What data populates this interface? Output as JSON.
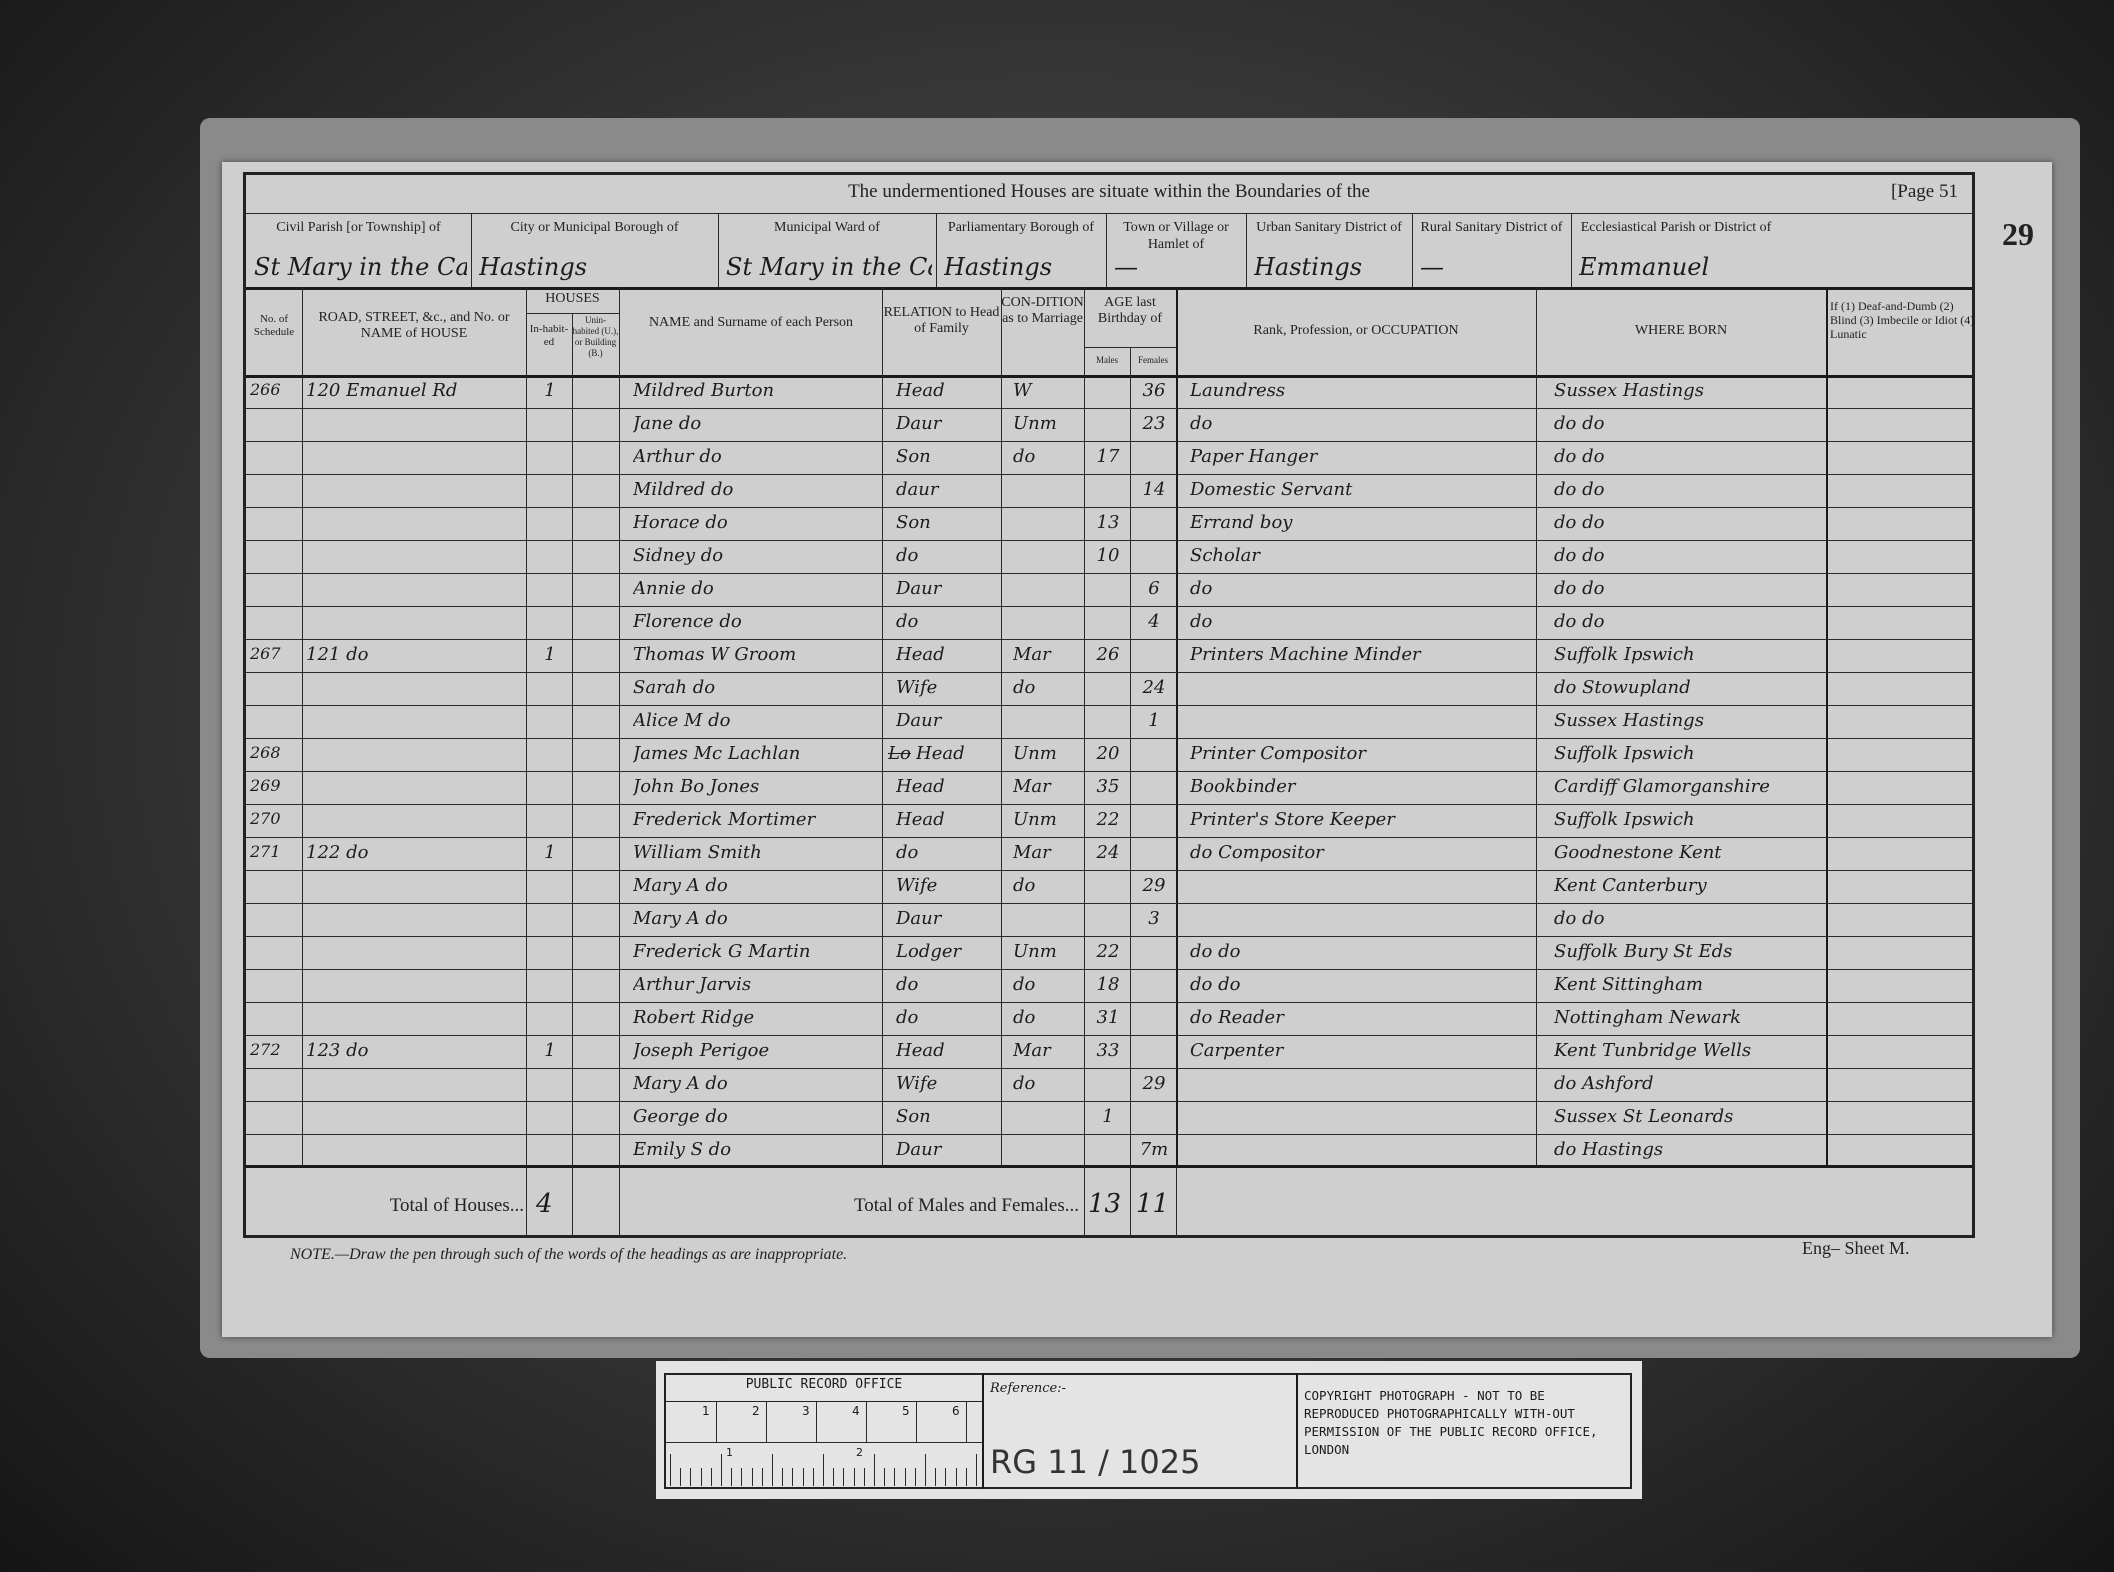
{
  "header": {
    "title": "The undermentioned Houses are situate within the Boundaries of the",
    "page": "[Page 51",
    "folio": "29"
  },
  "boundaries": [
    {
      "label": "Civil Parish [or Township] of",
      "value": "St Mary in the Castle"
    },
    {
      "label": "City or Municipal Borough of",
      "value": "Hastings"
    },
    {
      "label": "Municipal Ward of",
      "value": "St Mary in the Castle"
    },
    {
      "label": "Parliamentary Borough of",
      "value": "Hastings"
    },
    {
      "label": "Town or Village or Hamlet of",
      "value": "—"
    },
    {
      "label": "Urban Sanitary District of",
      "value": "Hastings"
    },
    {
      "label": "Rural Sanitary District of",
      "value": "—"
    },
    {
      "label": "Ecclesiastical Parish or District of",
      "value": "Emmanuel"
    }
  ],
  "columns": {
    "schedule": "No. of Schedule",
    "road": "ROAD, STREET, &c., and No. or NAME of HOUSE",
    "houses": "HOUSES",
    "inhabited": "In-habit-ed",
    "uninhabited": "Unin-habited (U.), or Building (B.)",
    "name": "NAME and Surname of each Person",
    "relation": "RELATION to Head of Family",
    "condition": "CON-DITION as to Marriage",
    "age": "AGE last Birthday of",
    "males": "Males",
    "females": "Females",
    "occupation": "Rank, Profession, or OCCUPATION",
    "born": "WHERE BORN",
    "infirmity": "If (1) Deaf-and-Dumb (2) Blind (3) Imbecile or Idiot (4) Lunatic"
  },
  "rows": [
    {
      "schedule": "266",
      "road": "120 Emanuel Rd",
      "inhabited": "1",
      "name": "Mildred Burton",
      "relation": "Head",
      "condition": "W",
      "male": "",
      "female": "36",
      "occupation": "Laundress",
      "born": "Sussex Hastings"
    },
    {
      "schedule": "",
      "road": "",
      "inhabited": "",
      "name": "Jane do",
      "relation": "Daur",
      "condition": "Unm",
      "male": "",
      "female": "23",
      "occupation": "do",
      "born": "do do"
    },
    {
      "schedule": "",
      "road": "",
      "inhabited": "",
      "name": "Arthur do",
      "relation": "Son",
      "condition": "do",
      "male": "17",
      "female": "",
      "occupation": "Paper Hanger",
      "born": "do do"
    },
    {
      "schedule": "",
      "road": "",
      "inhabited": "",
      "name": "Mildred do",
      "relation": "daur",
      "condition": "",
      "male": "",
      "female": "14",
      "occupation": "Domestic Servant",
      "born": "do do"
    },
    {
      "schedule": "",
      "road": "",
      "inhabited": "",
      "name": "Horace do",
      "relation": "Son",
      "condition": "",
      "male": "13",
      "female": "",
      "occupation": "Errand boy",
      "born": "do do"
    },
    {
      "schedule": "",
      "road": "",
      "inhabited": "",
      "name": "Sidney do",
      "relation": "do",
      "condition": "",
      "male": "10",
      "female": "",
      "occupation": "Scholar",
      "born": "do do"
    },
    {
      "schedule": "",
      "road": "",
      "inhabited": "",
      "name": "Annie do",
      "relation": "Daur",
      "condition": "",
      "male": "",
      "female": "6",
      "occupation": "do",
      "born": "do do"
    },
    {
      "schedule": "",
      "road": "",
      "inhabited": "",
      "name": "Florence do",
      "relation": "do",
      "condition": "",
      "male": "",
      "female": "4",
      "occupation": "do",
      "born": "do do"
    },
    {
      "schedule": "267",
      "road": "121 do",
      "inhabited": "1",
      "name": "Thomas W Groom",
      "relation": "Head",
      "condition": "Mar",
      "male": "26",
      "female": "",
      "occupation": "Printers Machine Minder",
      "born": "Suffolk Ipswich"
    },
    {
      "schedule": "",
      "road": "",
      "inhabited": "",
      "name": "Sarah do",
      "relation": "Wife",
      "condition": "do",
      "male": "",
      "female": "24",
      "occupation": "",
      "born": "do Stowupland"
    },
    {
      "schedule": "",
      "road": "",
      "inhabited": "",
      "name": "Alice M do",
      "relation": "Daur",
      "condition": "",
      "male": "",
      "female": "1",
      "occupation": "",
      "born": "Sussex Hastings"
    },
    {
      "schedule": "268",
      "road": "",
      "inhabited": "",
      "name": "James Mc Lachlan",
      "relation": "Head",
      "relation_struck": "Lo",
      "condition": "Unm",
      "male": "20",
      "female": "",
      "occupation": "Printer Compositor",
      "born": "Suffolk Ipswich"
    },
    {
      "schedule": "269",
      "road": "",
      "inhabited": "",
      "name": "John Bo Jones",
      "relation": "Head",
      "condition": "Mar",
      "male": "35",
      "female": "",
      "occupation": "Bookbinder",
      "born": "Cardiff Glamorganshire"
    },
    {
      "schedule": "270",
      "road": "",
      "inhabited": "",
      "name": "Frederick Mortimer",
      "relation": "Head",
      "condition": "Unm",
      "male": "22",
      "female": "",
      "occupation": "Printer's Store Keeper",
      "born": "Suffolk Ipswich"
    },
    {
      "schedule": "271",
      "road": "122 do",
      "inhabited": "1",
      "name": "William Smith",
      "relation": "do",
      "condition": "Mar",
      "male": "24",
      "female": "",
      "occupation": "do Compositor",
      "born": "Goodnestone Kent"
    },
    {
      "schedule": "",
      "road": "",
      "inhabited": "",
      "name": "Mary A do",
      "relation": "Wife",
      "condition": "do",
      "male": "",
      "female": "29",
      "occupation": "",
      "born": "Kent Canterbury"
    },
    {
      "schedule": "",
      "road": "",
      "inhabited": "",
      "name": "Mary A do",
      "relation": "Daur",
      "condition": "",
      "male": "",
      "female": "3",
      "occupation": "",
      "born": "do do"
    },
    {
      "schedule": "",
      "road": "",
      "inhabited": "",
      "name": "Frederick G Martin",
      "relation": "Lodger",
      "condition": "Unm",
      "male": "22",
      "female": "",
      "occupation": "do do",
      "born": "Suffolk Bury St Eds"
    },
    {
      "schedule": "",
      "road": "",
      "inhabited": "",
      "name": "Arthur Jarvis",
      "relation": "do",
      "condition": "do",
      "male": "18",
      "female": "",
      "occupation": "do do",
      "born": "Kent Sittingham"
    },
    {
      "schedule": "",
      "road": "",
      "inhabited": "",
      "name": "Robert Ridge",
      "relation": "do",
      "condition": "do",
      "male": "31",
      "female": "",
      "occupation": "do Reader",
      "born": "Nottingham Newark"
    },
    {
      "schedule": "272",
      "road": "123 do",
      "inhabited": "1",
      "name": "Joseph Perigoe",
      "relation": "Head",
      "condition": "Mar",
      "male": "33",
      "female": "",
      "occupation": "Carpenter",
      "born": "Kent Tunbridge Wells"
    },
    {
      "schedule": "",
      "road": "",
      "inhabited": "",
      "name": "Mary A do",
      "relation": "Wife",
      "condition": "do",
      "male": "",
      "female": "29",
      "occupation": "",
      "born": "do Ashford"
    },
    {
      "schedule": "",
      "road": "",
      "inhabited": "",
      "name": "George do",
      "relation": "Son",
      "condition": "",
      "male": "1",
      "female": "",
      "occupation": "",
      "born": "Sussex St Leonards"
    },
    {
      "schedule": "",
      "road": "",
      "inhabited": "",
      "name": "Emily S do",
      "relation": "Daur",
      "condition": "",
      "male": "",
      "female": "7m",
      "occupation": "",
      "born": "do Hastings"
    }
  ],
  "totals": {
    "houses_label": "Total of Houses...",
    "houses": "4",
    "persons_label": "Total of Males and Females...",
    "males": "13",
    "females": "11"
  },
  "note": "NOTE.—Draw the pen through such of the words of the headings as are inappropriate.",
  "sheet": "Eng– Sheet M.",
  "label_card": {
    "office": "PUBLIC RECORD OFFICE",
    "scale_cm": [
      "1",
      "2",
      "3",
      "4",
      "5",
      "6"
    ],
    "scale_in": [
      "1",
      "2"
    ],
    "reference_label": "Reference:-",
    "reference": "RG 11 / 1025",
    "copyright": "COPYRIGHT PHOTOGRAPH - NOT TO BE REPRODUCED PHOTOGRAPHICALLY WITH-OUT PERMISSION OF THE PUBLIC RECORD OFFICE, LONDON"
  }
}
